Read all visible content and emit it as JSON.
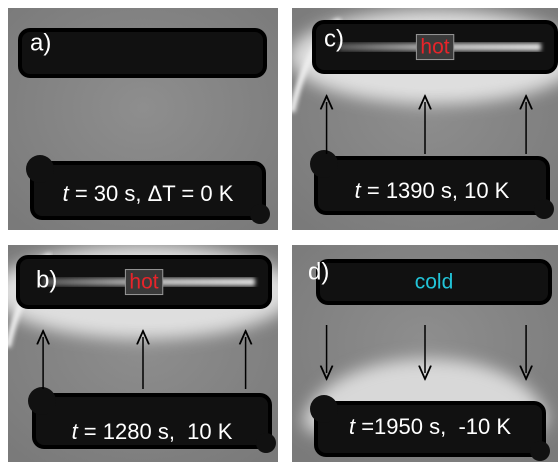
{
  "panels": [
    {
      "label": "a)",
      "caption_var": "t",
      "caption": " = 30 s, ΔT = 0 K"
    },
    {
      "label": "b)",
      "caption_var": "t",
      "caption": " = 1280 s,  10 K",
      "tag": "hot",
      "tag_color": "#e8242a"
    },
    {
      "label": "c)",
      "caption_var": "t",
      "caption": " = 1390 s, 10 K",
      "tag": "hot",
      "tag_color": "#e8242a"
    },
    {
      "label": "d)",
      "caption_var": "t",
      "caption": " =1950 s,  -10 K",
      "tag": "cold",
      "tag_color": "#22c4d8"
    }
  ]
}
